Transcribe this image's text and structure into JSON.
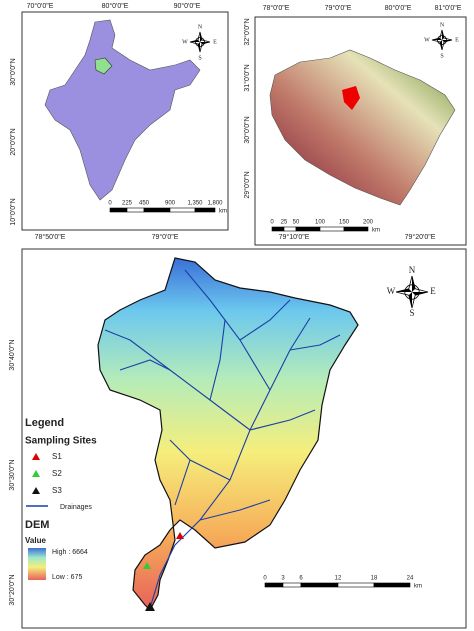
{
  "india_map": {
    "lon_labels": [
      "70°0'0\"E",
      "80°0'0\"E",
      "90°0'0\"E"
    ],
    "lat_labels": [
      "30°0'0\"N",
      "20°0'0\"N",
      "10°0'0\"N"
    ],
    "scale_labels": [
      "0",
      "225",
      "450",
      "900",
      "1,350",
      "1,800"
    ],
    "scale_unit": "km"
  },
  "state_map": {
    "lon_labels": [
      "78°0'0\"E",
      "79°0'0\"E",
      "80°0'0\"E",
      "81°0'0\"E"
    ],
    "lat_labels": [
      "32°0'0\"N",
      "31°0'0\"N",
      "30°0'0\"N",
      "29°0'0\"N"
    ],
    "scale_labels": [
      "0",
      "25",
      "50",
      "100",
      "150",
      "200"
    ],
    "scale_unit": "km"
  },
  "basin_map": {
    "lon_labels": [
      "78°50'0\"E",
      "79°0'0\"E",
      "79°10'0\"E",
      "79°20'0\"E"
    ],
    "lat_labels": [
      "30°40'0\"N",
      "30°30'0\"N",
      "30°20'0\"N"
    ],
    "scale_labels": [
      "0",
      "3",
      "6",
      "12",
      "18",
      "24"
    ],
    "scale_unit": "km",
    "legend": {
      "title": "Legend",
      "sites_title": "Sampling Sites",
      "sites": [
        "S1",
        "S2",
        "S3"
      ],
      "drainage": "Drainages",
      "dem_title": "DEM",
      "dem_subtitle": "Value",
      "dem_high": "High : 6664",
      "dem_low": "Low : 675"
    }
  },
  "compass": {
    "n": "N",
    "e": "E",
    "s": "S",
    "w": "W"
  }
}
